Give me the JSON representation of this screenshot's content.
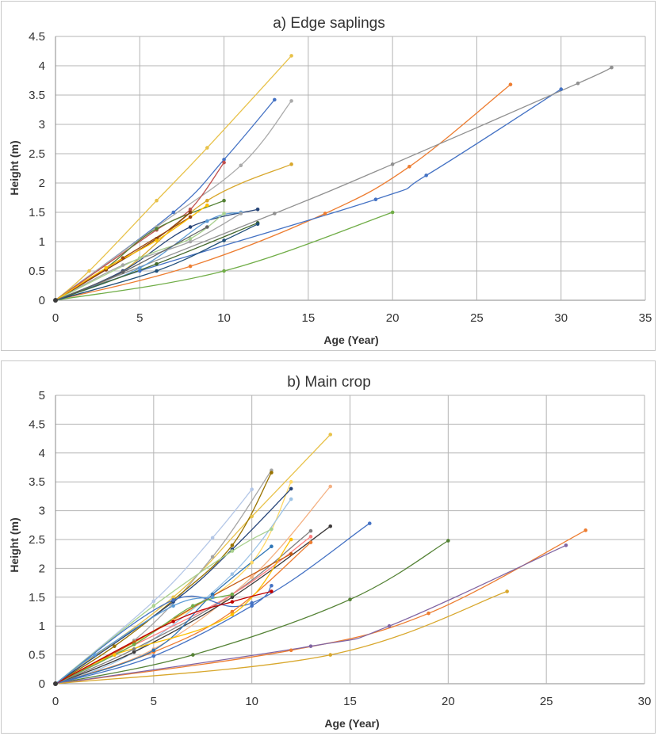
{
  "chart_data": [
    {
      "type": "line",
      "title": "a) Edge saplings",
      "xlabel": "Age (Year)",
      "ylabel": "Height (m)",
      "xlim": [
        0,
        35
      ],
      "ylim": [
        0,
        4.5
      ],
      "xticks": [
        "0",
        "5",
        "10",
        "15",
        "20",
        "25",
        "30",
        "35"
      ],
      "yticks": [
        "0",
        "0.5",
        "1",
        "1.5",
        "2",
        "2.5",
        "3",
        "3.5",
        "4",
        "4.5"
      ],
      "grid": true,
      "series": [
        {
          "color": "#e8c24a",
          "x": [
            0,
            2,
            6,
            9,
            14
          ],
          "y": [
            0,
            0.5,
            1.7,
            2.6,
            4.17
          ]
        },
        {
          "color": "#4472c4",
          "x": [
            0,
            7,
            10,
            13
          ],
          "y": [
            0,
            1.5,
            2.4,
            3.42
          ]
        },
        {
          "color": "#aaaaaa",
          "x": [
            0,
            6,
            11,
            14
          ],
          "y": [
            0,
            1.25,
            2.3,
            3.4
          ]
        },
        {
          "color": "#c0504d",
          "x": [
            0,
            6,
            8,
            10
          ],
          "y": [
            0,
            1.2,
            1.55,
            2.35
          ]
        },
        {
          "color": "#d8a72c",
          "x": [
            0,
            4,
            9,
            14
          ],
          "y": [
            0,
            0.5,
            1.7,
            2.32
          ]
        },
        {
          "color": "#ed7d31",
          "x": [
            0,
            8,
            16,
            21,
            27
          ],
          "y": [
            0,
            0.58,
            1.48,
            2.28,
            3.68
          ]
        },
        {
          "color": "#4472c4",
          "x": [
            0,
            5,
            19,
            22,
            30
          ],
          "y": [
            0,
            0.5,
            1.72,
            2.13,
            3.6
          ]
        },
        {
          "color": "#909090",
          "x": [
            0,
            13,
            20,
            31,
            33
          ],
          "y": [
            0,
            1.48,
            2.32,
            3.7,
            3.97
          ]
        },
        {
          "color": "#70ad47",
          "x": [
            0,
            10,
            20
          ],
          "y": [
            0,
            0.5,
            1.5
          ]
        },
        {
          "color": "#548235",
          "x": [
            0,
            3,
            6,
            10
          ],
          "y": [
            0,
            0.55,
            1.22,
            1.7
          ]
        },
        {
          "color": "#264478",
          "x": [
            0,
            4,
            8,
            12
          ],
          "y": [
            0,
            0.5,
            1.25,
            1.55
          ]
        },
        {
          "color": "#5b9bd5",
          "x": [
            0,
            5,
            9,
            11
          ],
          "y": [
            0,
            0.55,
            1.35,
            1.5
          ]
        },
        {
          "color": "#a5a5a5",
          "x": [
            0,
            4,
            8,
            11
          ],
          "y": [
            0,
            0.6,
            1.0,
            1.48
          ]
        },
        {
          "color": "#843c0c",
          "x": [
            0,
            3,
            6,
            8
          ],
          "y": [
            0,
            0.52,
            1.05,
            1.5
          ]
        },
        {
          "color": "#9e480e",
          "x": [
            0,
            4,
            8
          ],
          "y": [
            0,
            0.72,
            1.42
          ]
        },
        {
          "color": "#43682b",
          "x": [
            0,
            6,
            12
          ],
          "y": [
            0,
            0.62,
            1.32
          ]
        },
        {
          "color": "#1f4e79",
          "x": [
            0,
            6,
            10,
            12
          ],
          "y": [
            0,
            0.5,
            1.02,
            1.3
          ]
        },
        {
          "color": "#a9d18e",
          "x": [
            0,
            5,
            8,
            10
          ],
          "y": [
            0,
            0.72,
            1.05,
            1.48
          ]
        },
        {
          "color": "#ffc000",
          "x": [
            0,
            3,
            6,
            9
          ],
          "y": [
            0,
            0.55,
            1.02,
            1.62
          ]
        },
        {
          "color": "#636363",
          "x": [
            0,
            4,
            9
          ],
          "y": [
            0,
            0.48,
            1.25
          ]
        }
      ]
    },
    {
      "type": "line",
      "title": "b) Main crop",
      "xlabel": "Age (Year)",
      "ylabel": "Height (m)",
      "xlim": [
        0,
        30
      ],
      "ylim": [
        0,
        5
      ],
      "xticks": [
        "0",
        "5",
        "10",
        "15",
        "20",
        "25",
        "30"
      ],
      "yticks": [
        "0",
        "0.5",
        "1",
        "1.5",
        "2",
        "2.5",
        "3",
        "3.5",
        "4",
        "4.5",
        "5"
      ],
      "grid": true,
      "series": [
        {
          "color": "#e8c24a",
          "x": [
            0,
            6,
            10,
            14
          ],
          "y": [
            0,
            1.5,
            2.9,
            4.32
          ]
        },
        {
          "color": "#b4c7e7",
          "x": [
            0,
            5,
            8,
            10
          ],
          "y": [
            0,
            1.43,
            2.53,
            3.37
          ]
        },
        {
          "color": "#a5a5a5",
          "x": [
            0,
            4,
            8,
            11
          ],
          "y": [
            0,
            0.75,
            2.2,
            3.7
          ]
        },
        {
          "color": "#997300",
          "x": [
            0,
            3,
            6,
            9,
            11
          ],
          "y": [
            0,
            0.65,
            1.45,
            2.4,
            3.66
          ]
        },
        {
          "color": "#ffd966",
          "x": [
            0,
            6,
            10,
            12
          ],
          "y": [
            0,
            1.1,
            2.1,
            3.5
          ]
        },
        {
          "color": "#264478",
          "x": [
            0,
            6,
            9,
            12
          ],
          "y": [
            0,
            1.42,
            2.33,
            3.38
          ]
        },
        {
          "color": "#9dc3e6",
          "x": [
            0,
            4,
            9,
            12
          ],
          "y": [
            0,
            0.55,
            1.9,
            3.2
          ]
        },
        {
          "color": "#f4b183",
          "x": [
            0,
            5,
            10,
            14
          ],
          "y": [
            0,
            0.6,
            1.85,
            3.42
          ]
        },
        {
          "color": "#a9d18e",
          "x": [
            0,
            5,
            9,
            11
          ],
          "y": [
            0,
            1.35,
            2.3,
            2.68
          ]
        },
        {
          "color": "#3b3838",
          "x": [
            0,
            4,
            9,
            14
          ],
          "y": [
            0,
            0.55,
            1.5,
            2.73
          ]
        },
        {
          "color": "#7f7f7f",
          "x": [
            0,
            4,
            9,
            13
          ],
          "y": [
            0,
            0.6,
            1.55,
            2.65
          ]
        },
        {
          "color": "#ff7f7f",
          "x": [
            0,
            3,
            9,
            13
          ],
          "y": [
            0,
            0.5,
            1.55,
            2.55
          ]
        },
        {
          "color": "#4472c4",
          "x": [
            0,
            6,
            10,
            16
          ],
          "y": [
            0,
            1.45,
            1.4,
            2.78
          ]
        },
        {
          "color": "#ed7d31",
          "x": [
            0,
            5,
            9,
            13
          ],
          "y": [
            0,
            0.55,
            1.25,
            2.45
          ]
        },
        {
          "color": "#c55a11",
          "x": [
            0,
            4,
            8,
            12
          ],
          "y": [
            0,
            0.72,
            1.52,
            2.25
          ]
        },
        {
          "color": "#2e75b6",
          "x": [
            0,
            5,
            8,
            11
          ],
          "y": [
            0,
            0.58,
            1.55,
            2.38
          ]
        },
        {
          "color": "#ffc000",
          "x": [
            0,
            3,
            9,
            12
          ],
          "y": [
            0,
            0.5,
            1.2,
            2.5
          ]
        },
        {
          "color": "#548235",
          "x": [
            0,
            7,
            15,
            20
          ],
          "y": [
            0,
            0.5,
            1.46,
            2.48
          ]
        },
        {
          "color": "#ed7d31",
          "x": [
            0,
            12,
            19,
            27
          ],
          "y": [
            0,
            0.58,
            1.22,
            2.66
          ]
        },
        {
          "color": "#8064a2",
          "x": [
            0,
            13,
            17,
            26
          ],
          "y": [
            0,
            0.65,
            1.0,
            2.4
          ]
        },
        {
          "color": "#d8a72c",
          "x": [
            0,
            14,
            23
          ],
          "y": [
            0,
            0.5,
            1.6
          ]
        },
        {
          "color": "#70ad47",
          "x": [
            0,
            4,
            7,
            9
          ],
          "y": [
            0,
            0.68,
            1.35,
            1.55
          ]
        },
        {
          "color": "#4472c4",
          "x": [
            0,
            5,
            10,
            11
          ],
          "y": [
            0,
            0.48,
            1.35,
            1.7
          ]
        },
        {
          "color": "#c00000",
          "x": [
            0,
            6,
            9,
            11
          ],
          "y": [
            0,
            1.08,
            1.42,
            1.6
          ]
        },
        {
          "color": "#5b9bd5",
          "x": [
            0,
            2,
            6,
            8
          ],
          "y": [
            0,
            0.5,
            1.35,
            1.5
          ]
        }
      ]
    }
  ]
}
